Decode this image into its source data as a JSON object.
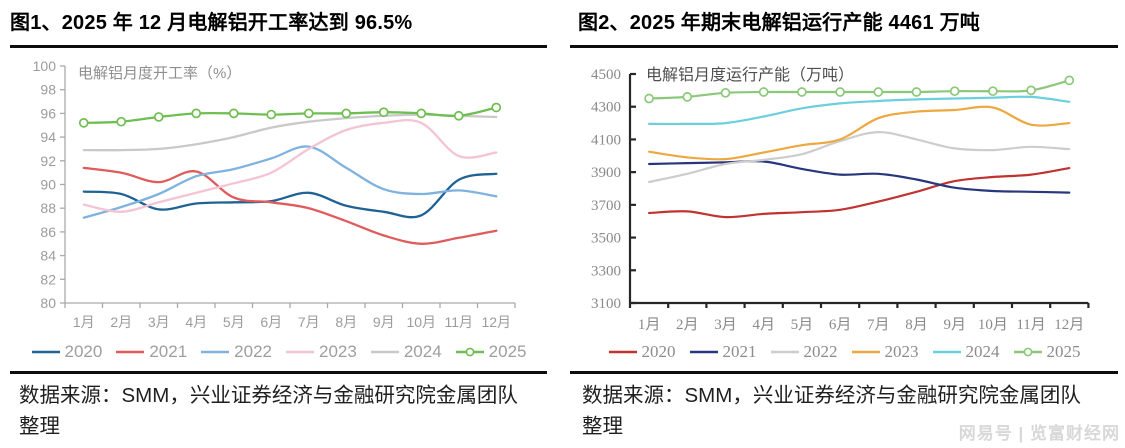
{
  "page": {
    "watermark": "网易号 | 览富财经网"
  },
  "panels": [
    {
      "title": "图1、2025 年 12 月电解铝开工率达到 96.5%",
      "source": "数据来源：SMM，兴业证券经济与金融研究院金属团队整理"
    },
    {
      "title": "图2、2025 年期末电解铝运行产能 4461 万吨",
      "source": "数据来源：SMM，兴业证券经济与金融研究院金属团队整理"
    }
  ],
  "chart_data": [
    {
      "type": "line",
      "title": "电解铝月度开工率（%）",
      "categories": [
        "1月",
        "2月",
        "3月",
        "4月",
        "5月",
        "6月",
        "7月",
        "8月",
        "9月",
        "10月",
        "11月",
        "12月"
      ],
      "ylim": [
        80,
        100
      ],
      "ytick_step": 2,
      "grid": false,
      "legend_position": "bottom",
      "series": [
        {
          "name": "2020",
          "color": "#1F6294",
          "marker": false,
          "values": [
            89.4,
            89.2,
            87.9,
            88.4,
            88.5,
            88.6,
            89.3,
            88.2,
            87.7,
            87.4,
            90.4,
            90.9
          ]
        },
        {
          "name": "2021",
          "color": "#E05C5C",
          "marker": false,
          "values": [
            91.4,
            91.0,
            90.2,
            91.1,
            88.9,
            88.5,
            88.0,
            86.9,
            85.7,
            85.0,
            85.5,
            86.1
          ]
        },
        {
          "name": "2022",
          "color": "#7FB2DE",
          "marker": false,
          "values": [
            87.2,
            88.1,
            89.2,
            90.7,
            91.3,
            92.2,
            93.2,
            91.4,
            89.6,
            89.2,
            89.5,
            89.0
          ]
        },
        {
          "name": "2023",
          "color": "#F4C3D4",
          "marker": false,
          "values": [
            88.3,
            87.7,
            88.5,
            89.3,
            90.1,
            91.0,
            93.0,
            94.6,
            95.2,
            95.2,
            92.4,
            92.7
          ]
        },
        {
          "name": "2024",
          "color": "#C9C9C9",
          "marker": false,
          "values": [
            92.9,
            92.9,
            93.0,
            93.4,
            94.0,
            94.8,
            95.3,
            95.6,
            95.8,
            95.9,
            95.8,
            95.7
          ]
        },
        {
          "name": "2025",
          "color": "#6FBE52",
          "marker": true,
          "values": [
            95.2,
            95.3,
            95.7,
            96.0,
            96.0,
            95.9,
            96.0,
            96.0,
            96.1,
            96.0,
            95.8,
            96.5
          ]
        }
      ]
    },
    {
      "type": "line",
      "title": "电解铝月度运行产能（万吨）",
      "categories": [
        "1月",
        "2月",
        "3月",
        "4月",
        "5月",
        "6月",
        "7月",
        "8月",
        "9月",
        "10月",
        "11月",
        "12月"
      ],
      "ylim": [
        3100,
        4500
      ],
      "ytick_step": 200,
      "grid": false,
      "legend_position": "bottom",
      "series": [
        {
          "name": "2020",
          "color": "#C03330",
          "marker": false,
          "values": [
            3650,
            3660,
            3625,
            3645,
            3655,
            3670,
            3720,
            3780,
            3845,
            3870,
            3885,
            3925
          ]
        },
        {
          "name": "2021",
          "color": "#28367E",
          "marker": false,
          "values": [
            3950,
            3955,
            3960,
            3965,
            3920,
            3885,
            3890,
            3855,
            3805,
            3785,
            3780,
            3775
          ]
        },
        {
          "name": "2022",
          "color": "#CDCDCD",
          "marker": false,
          "values": [
            3840,
            3890,
            3950,
            3975,
            4010,
            4090,
            4145,
            4100,
            4045,
            4035,
            4055,
            4040
          ]
        },
        {
          "name": "2023",
          "color": "#EDA83F",
          "marker": false,
          "values": [
            4025,
            3990,
            3980,
            4020,
            4065,
            4100,
            4230,
            4270,
            4280,
            4295,
            4190,
            4200
          ]
        },
        {
          "name": "2024",
          "color": "#6CCFDD",
          "marker": false,
          "values": [
            4195,
            4195,
            4200,
            4240,
            4290,
            4320,
            4335,
            4345,
            4350,
            4355,
            4360,
            4330
          ]
        },
        {
          "name": "2025",
          "color": "#8BC87A",
          "marker": true,
          "values": [
            4350,
            4360,
            4385,
            4390,
            4390,
            4390,
            4390,
            4390,
            4395,
            4395,
            4400,
            4461
          ]
        }
      ]
    }
  ]
}
